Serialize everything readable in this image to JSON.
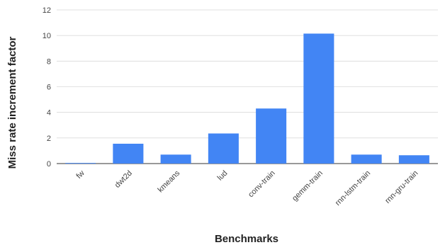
{
  "chart_data": {
    "type": "bar",
    "title": "",
    "xlabel": "Benchmarks",
    "ylabel": "Miss rate increment factor",
    "categories": [
      "fw",
      "dwt2d",
      "kmeans",
      "lud",
      "conv-train",
      "gemm-train",
      "rnn-lstm-train",
      "rnn-gru-train"
    ],
    "values": [
      0.05,
      1.55,
      0.7,
      2.35,
      4.3,
      10.15,
      0.7,
      0.65
    ],
    "ylim": [
      0,
      12
    ],
    "yticks": [
      0,
      2,
      4,
      6,
      8,
      10,
      12
    ],
    "grid": true,
    "legend": "none",
    "bar_color": "#4285f4",
    "grid_color": "#d9d9d9"
  }
}
